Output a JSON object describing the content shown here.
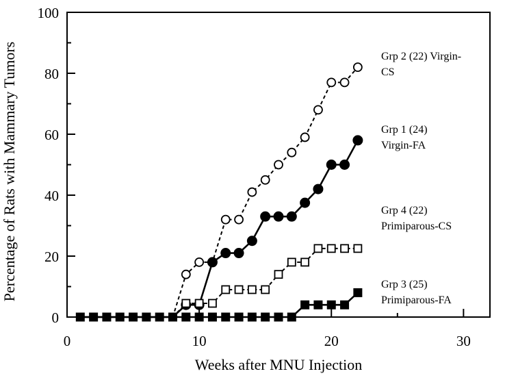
{
  "chart_data": {
    "type": "line",
    "title": "",
    "xlabel": "Weeks after MNU Injection",
    "ylabel": "Percentage of Rats with Mammary Tumors",
    "xlim": [
      0,
      32
    ],
    "ylim": [
      0,
      100
    ],
    "xticks": [
      0,
      10,
      20,
      30
    ],
    "yticks": [
      0,
      20,
      40,
      60,
      80,
      100
    ],
    "grid": false,
    "series": [
      {
        "name": "Grp 2 (22) Virgin-CS",
        "label_lines": [
          "Grp 2 (22) Virgin-",
          "CS"
        ],
        "marker": "open-circle",
        "line": "dashed",
        "x": [
          1,
          2,
          3,
          4,
          5,
          6,
          7,
          8,
          9,
          10,
          11,
          12,
          13,
          14,
          15,
          16,
          17,
          18,
          19,
          20,
          21,
          22
        ],
        "y": [
          0,
          0,
          0,
          0,
          0,
          0,
          0,
          0,
          14,
          18,
          18,
          32,
          32,
          41,
          45,
          50,
          54,
          59,
          68,
          77,
          77,
          82
        ]
      },
      {
        "name": "Grp 1 (24) Virgin-FA",
        "label_lines": [
          "Grp 1 (24)",
          "Virgin-FA"
        ],
        "marker": "filled-circle",
        "line": "solid",
        "x": [
          1,
          2,
          3,
          4,
          5,
          6,
          7,
          8,
          9,
          10,
          11,
          12,
          13,
          14,
          15,
          16,
          17,
          18,
          19,
          20,
          21,
          22
        ],
        "y": [
          0,
          0,
          0,
          0,
          0,
          0,
          0,
          0,
          4,
          4,
          18,
          21,
          21,
          25,
          33,
          33,
          33,
          37.5,
          42,
          50,
          50,
          58
        ]
      },
      {
        "name": "Grp 4 (22) Primiparous-CS",
        "label_lines": [
          "Grp 4 (22)",
          "Primiparous-CS"
        ],
        "marker": "open-square",
        "line": "dashed",
        "x": [
          1,
          2,
          3,
          4,
          5,
          6,
          7,
          8,
          9,
          10,
          11,
          12,
          13,
          14,
          15,
          16,
          17,
          18,
          19,
          20,
          21,
          22
        ],
        "y": [
          0,
          0,
          0,
          0,
          0,
          0,
          0,
          0,
          4.5,
          4.5,
          4.5,
          9,
          9,
          9,
          9,
          14,
          18,
          18,
          22.5,
          22.5,
          22.5,
          22.5
        ]
      },
      {
        "name": "Grp 3 (25) Primiparous-FA",
        "label_lines": [
          "Grp 3 (25)",
          "Primiparous-FA"
        ],
        "marker": "filled-square",
        "line": "solid",
        "x": [
          1,
          2,
          3,
          4,
          5,
          6,
          7,
          8,
          9,
          10,
          11,
          12,
          13,
          14,
          15,
          16,
          17,
          18,
          19,
          20,
          21,
          22
        ],
        "y": [
          0,
          0,
          0,
          0,
          0,
          0,
          0,
          0,
          0,
          0,
          0,
          0,
          0,
          0,
          0,
          0,
          0,
          4,
          4,
          4,
          4,
          8
        ]
      }
    ]
  }
}
